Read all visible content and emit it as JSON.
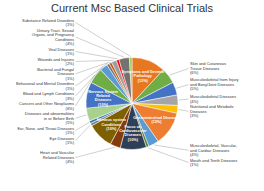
{
  "chart_data": {
    "type": "pie",
    "title": "Current Msc Based Clinical Trials",
    "categories": [
      "Symptoms and General\nPathology\n(13%)",
      "Skin and Cutaneous\nTissue Diseases\n(6%)",
      "Musculoskeletal from Injury\nand Bony/Joint Diseases\n(5%)",
      "Musculoskeletal Diseases\n(4%)",
      "Nutritional and Metabolic\nDiseases\n(3%)",
      "Gastrointestinal Diseases\n(13%)",
      "Musculoskeletal, Vascular,\nand Cardiac Diseases\n(4%)",
      "Mouth and Teeth Diseases\n(1%)",
      "Focus on\nCardiovascular\nDiseases\n(10%)",
      "Heart and Vascular\nRelated Diseases\n(4%)",
      "Nervous system\nConditions\n(10%)",
      "Eye Diseases\n(1%)",
      "Ear, Nose, and Throat Diseases\n(1%)",
      "Diseases and abnormalities\nin or Before Birth\n(5%)",
      "Nervous System\nRelated\nDiseases\n(10%)",
      "Cancers and Other Neoplasms\n(6%)",
      "Blood and Lymph Conditions\n(3%)",
      "Behavioral and Mental Disorders\n(1%)",
      "Bacterial and Fungal\nDiseases\n(1%)",
      "Wounds and Injuries\n(2%)",
      "Viral Diseases\n(1%)",
      "Urinary Tract, Sexual\nOrgans, and Pregnancy\nConditions\n(4%)",
      "Substance Related Disorders\n(1%)"
    ],
    "values": [
      13,
      6,
      5,
      4,
      3,
      13,
      4,
      1,
      10,
      4,
      10,
      1,
      1,
      5,
      10,
      6,
      3,
      1,
      1,
      2,
      1,
      4,
      1
    ],
    "colors": [
      "#E87722",
      "#70AD47",
      "#4472C4",
      "#A5A5A5",
      "#FFC000",
      "#ED7D31",
      "#5B9BD5",
      "#548235",
      "#2E4057",
      "#843C0C",
      "#7F6000",
      "#808080",
      "#2E75B6",
      "#A9D18E",
      "#4472C4",
      "#70AD47",
      "#5B9BD5",
      "#757171",
      "#C55A11",
      "#9E9E9E",
      "#FF0000",
      "#767171",
      "#92D050"
    ]
  }
}
